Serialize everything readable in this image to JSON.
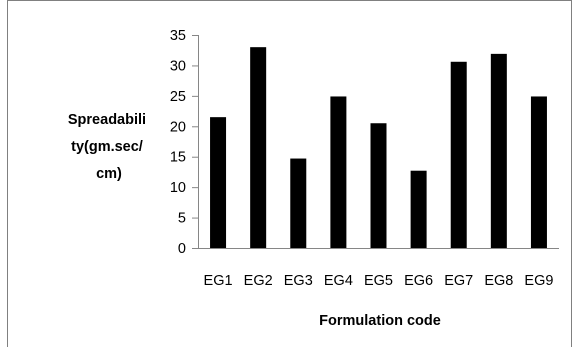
{
  "chart_data": {
    "type": "bar",
    "categories": [
      "EG1",
      "EG2",
      "EG3",
      "EG4",
      "EG5",
      "EG6",
      "EG7",
      "EG8",
      "EG9"
    ],
    "values": [
      21.5,
      33,
      14.7,
      24.9,
      20.5,
      12.7,
      30.6,
      31.9,
      24.9
    ],
    "xlabel": "Formulation code",
    "ylabel_lines": [
      "Spreadabili",
      "ty(gm.sec/",
      "cm)"
    ],
    "ylim": [
      0,
      35
    ],
    "yticks": [
      "0",
      "5",
      "10",
      "15",
      "20",
      "25",
      "30",
      "35"
    ],
    "grid": false,
    "legend": "none",
    "bar_color": "#000000",
    "axis_color": "#868686"
  }
}
